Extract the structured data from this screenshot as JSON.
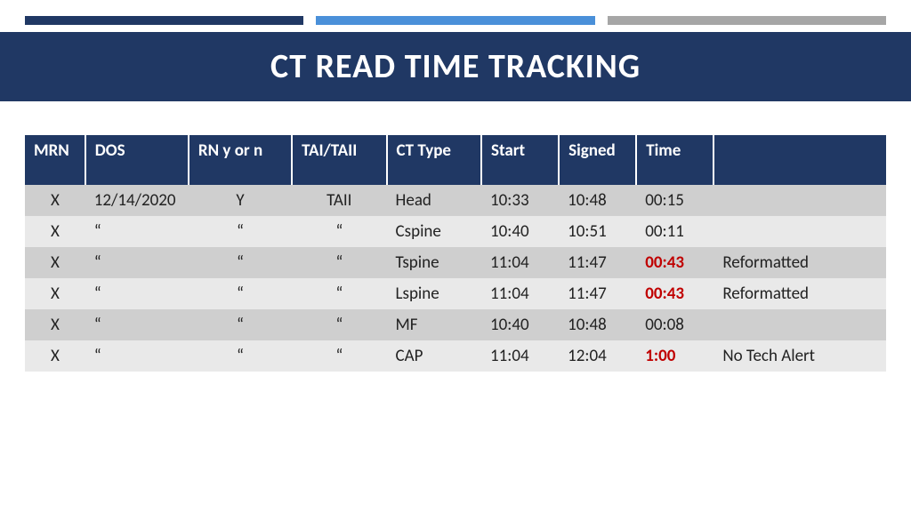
{
  "title": "CT READ TIME TRACKING",
  "title_fontsize": 38,
  "colors": {
    "banner_bg": "#203864",
    "bar_dark": "#203864",
    "bar_mid": "#4a90d9",
    "bar_light": "#a6a6a6",
    "header_bg": "#203864",
    "header_text": "#ffffff",
    "row_alt_a": "#cfcfcf",
    "row_alt_b": "#e9e9e9",
    "highlight_text": "#c00000",
    "body_text": "#222222"
  },
  "table": {
    "columns": [
      {
        "label": "MRN",
        "width": "7%",
        "align": "center"
      },
      {
        "label": "DOS",
        "width": "12%",
        "align": "left"
      },
      {
        "label": "RN y or n",
        "width": "12%",
        "align": "center"
      },
      {
        "label": "TAI/TAII",
        "width": "11%",
        "align": "center"
      },
      {
        "label": "CT Type",
        "width": "11%",
        "align": "left"
      },
      {
        "label": "Start",
        "width": "9%",
        "align": "left"
      },
      {
        "label": "Signed",
        "width": "9%",
        "align": "left"
      },
      {
        "label": "Time",
        "width": "9%",
        "align": "left"
      },
      {
        "label": "",
        "width": "20%",
        "align": "left"
      }
    ],
    "rows": [
      {
        "mrn": "X",
        "dos": "12/14/2020",
        "rn": "Y",
        "tai": "TAII",
        "ct": "Head",
        "start": "10:33",
        "signed": "10:48",
        "time": "00:15",
        "time_hl": false,
        "note": ""
      },
      {
        "mrn": "X",
        "dos": "“",
        "rn": "“",
        "tai": "“",
        "ct": "Cspine",
        "start": "10:40",
        "signed": "10:51",
        "time": "00:11",
        "time_hl": false,
        "note": ""
      },
      {
        "mrn": "X",
        "dos": "“",
        "rn": "“",
        "tai": "“",
        "ct": "Tspine",
        "start": "11:04",
        "signed": "11:47",
        "time": "00:43",
        "time_hl": true,
        "note": "Reformatted"
      },
      {
        "mrn": "X",
        "dos": "“",
        "rn": "“",
        "tai": "“",
        "ct": "Lspine",
        "start": "11:04",
        "signed": "11:47",
        "time": "00:43",
        "time_hl": true,
        "note": "Reformatted"
      },
      {
        "mrn": "X",
        "dos": "“",
        "rn": "“",
        "tai": "“",
        "ct": "MF",
        "start": "10:40",
        "signed": "10:48",
        "time": "00:08",
        "time_hl": false,
        "note": ""
      },
      {
        "mrn": "X",
        "dos": "“",
        "rn": "“",
        "tai": "“",
        "ct": "CAP",
        "start": "11:04",
        "signed": "12:04",
        "time": "1:00",
        "time_hl": true,
        "note": "No Tech Alert"
      }
    ]
  }
}
